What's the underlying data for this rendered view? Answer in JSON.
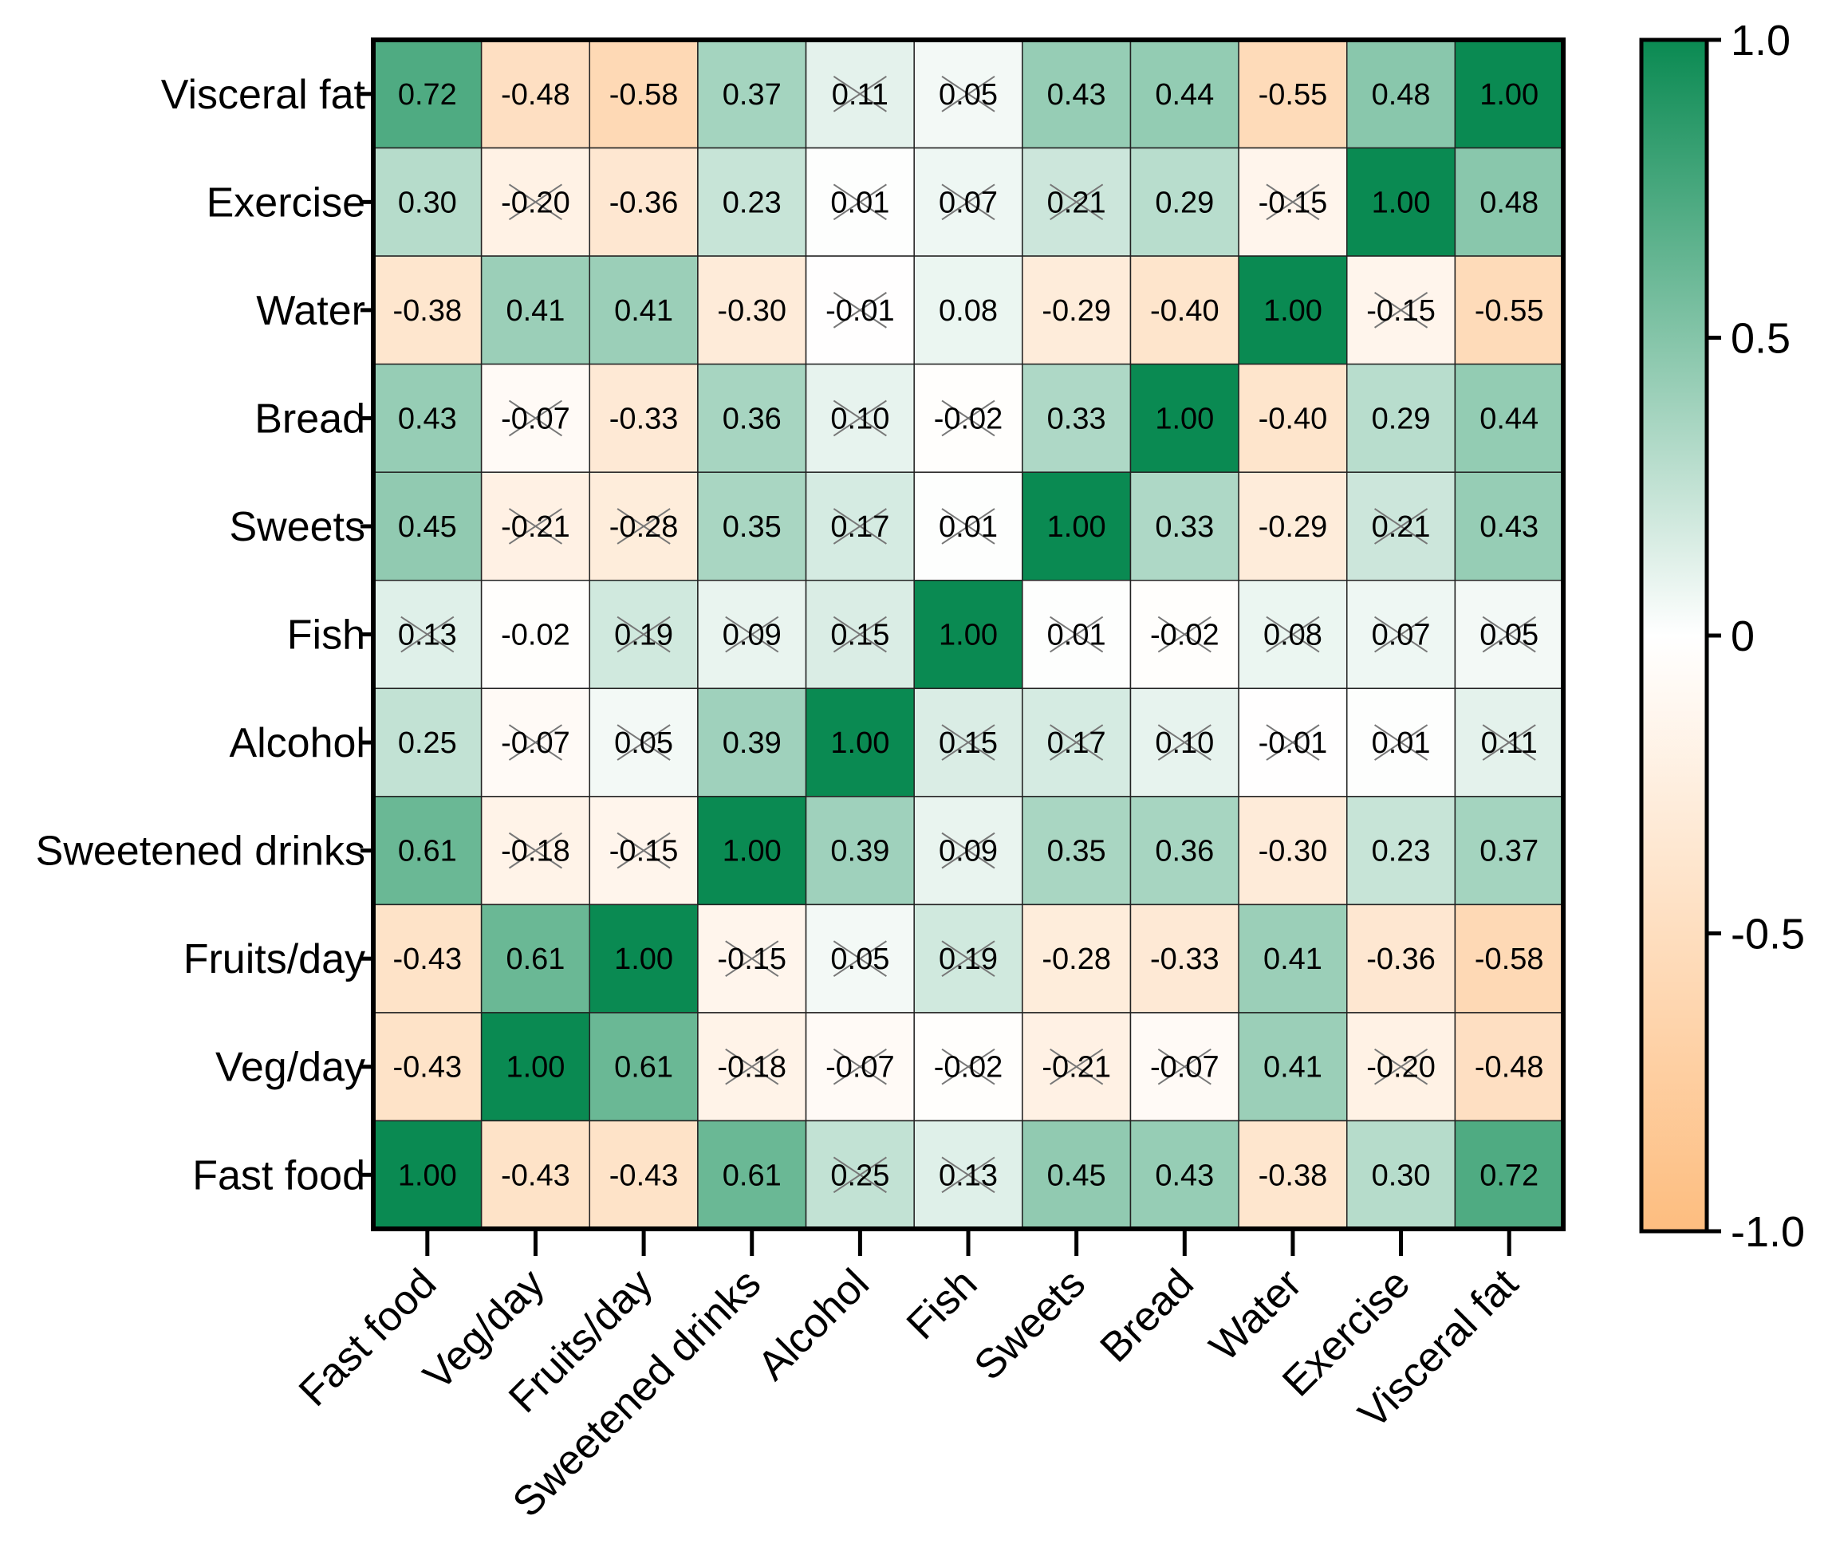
{
  "chart_data": {
    "type": "heatmap",
    "x_labels": [
      "Fast food",
      "Veg/day",
      "Fruits/day",
      "Sweetened drinks",
      "Alcohol",
      "Fish",
      "Sweets",
      "Bread",
      "Water",
      "Exercise",
      "Visceral fat"
    ],
    "y_labels_top_to_bottom": [
      "Visceral fat",
      "Exercise",
      "Water",
      "Bread",
      "Sweets",
      "Fish",
      "Alcohol",
      "Sweetened drinks",
      "Fruits/day",
      "Veg/day",
      "Fast food"
    ],
    "values": [
      [
        0.72,
        -0.48,
        -0.58,
        0.37,
        0.11,
        0.05,
        0.43,
        0.44,
        -0.55,
        0.48,
        1.0
      ],
      [
        0.3,
        -0.2,
        -0.36,
        0.23,
        0.01,
        0.07,
        0.21,
        0.29,
        -0.15,
        1.0,
        0.48
      ],
      [
        -0.38,
        0.41,
        0.41,
        -0.3,
        -0.01,
        0.08,
        -0.29,
        -0.4,
        1.0,
        -0.15,
        -0.55
      ],
      [
        0.43,
        -0.07,
        -0.33,
        0.36,
        0.1,
        -0.02,
        0.33,
        1.0,
        -0.4,
        0.29,
        0.44
      ],
      [
        0.45,
        -0.21,
        -0.28,
        0.35,
        0.17,
        0.01,
        1.0,
        0.33,
        -0.29,
        0.21,
        0.43
      ],
      [
        0.13,
        -0.02,
        0.19,
        0.09,
        0.15,
        1.0,
        0.01,
        -0.02,
        0.08,
        0.07,
        0.05
      ],
      [
        0.25,
        -0.07,
        0.05,
        0.39,
        1.0,
        0.15,
        0.17,
        0.1,
        -0.01,
        0.01,
        0.11
      ],
      [
        0.61,
        -0.18,
        -0.15,
        1.0,
        0.39,
        0.09,
        0.35,
        0.36,
        -0.3,
        0.23,
        0.37
      ],
      [
        -0.43,
        0.61,
        1.0,
        -0.15,
        0.05,
        0.19,
        -0.28,
        -0.33,
        0.41,
        -0.36,
        -0.58
      ],
      [
        -0.43,
        1.0,
        0.61,
        -0.18,
        -0.07,
        -0.02,
        -0.21,
        -0.07,
        0.41,
        -0.2,
        -0.48
      ],
      [
        1.0,
        -0.43,
        -0.43,
        0.61,
        0.25,
        0.13,
        0.45,
        0.43,
        -0.38,
        0.3,
        0.72
      ]
    ],
    "value_labels": [
      [
        "0.72",
        "-0.48",
        "-0.58",
        "0.37",
        "0.11",
        "0.05",
        "0.43",
        "0.44",
        "-0.55",
        "0.48",
        "1.00"
      ],
      [
        "0.30",
        "-0.20",
        "-0.36",
        "0.23",
        "0.01",
        "0.07",
        "0.21",
        "0.29",
        "-0.15",
        "1.00",
        "0.48"
      ],
      [
        "-0.38",
        "0.41",
        "0.41",
        "-0.30",
        "-0.01",
        "0.08",
        "-0.29",
        "-0.40",
        "1.00",
        "-0.15",
        "-0.55"
      ],
      [
        "0.43",
        "-0.07",
        "-0.33",
        "0.36",
        "0.10",
        "-0.02",
        "0.33",
        "1.00",
        "-0.40",
        "0.29",
        "0.44"
      ],
      [
        "0.45",
        "-0.21",
        "-0.28",
        "0.35",
        "0.17",
        "0.01",
        "1.00",
        "0.33",
        "-0.29",
        "0.21",
        "0.43"
      ],
      [
        "0.13",
        "-0.02",
        "0.19",
        "0.09",
        "0.15",
        "1.00",
        "0.01",
        "-0.02",
        "0.08",
        "0.07",
        "0.05"
      ],
      [
        "0.25",
        "-0.07",
        "0.05",
        "0.39",
        "1.00",
        "0.15",
        "0.17",
        "0.10",
        "-0.01",
        "0.01",
        "0.11"
      ],
      [
        "0.61",
        "-0.18",
        "-0.15",
        "1.00",
        "0.39",
        "0.09",
        "0.35",
        "0.36",
        "-0.30",
        "0.23",
        "0.37"
      ],
      [
        "-0.43",
        "0.61",
        "1.00",
        "-0.15",
        "0.05",
        "0.19",
        "-0.28",
        "-0.33",
        "0.41",
        "-0.36",
        "-0.58"
      ],
      [
        "-0.43",
        "1.00",
        "0.61",
        "-0.18",
        "-0.07",
        "-0.02",
        "-0.21",
        "-0.07",
        "0.41",
        "-0.20",
        "-0.48"
      ],
      [
        "1.00",
        "-0.43",
        "-0.43",
        "0.61",
        "0.25",
        "0.13",
        "0.45",
        "0.43",
        "-0.38",
        "0.30",
        "0.72"
      ]
    ],
    "non_significant_crossed": [
      [
        false,
        false,
        false,
        false,
        true,
        true,
        false,
        false,
        false,
        false,
        false
      ],
      [
        false,
        true,
        false,
        false,
        true,
        true,
        true,
        false,
        true,
        false,
        false
      ],
      [
        false,
        false,
        false,
        false,
        true,
        false,
        false,
        false,
        false,
        true,
        false
      ],
      [
        false,
        true,
        false,
        false,
        true,
        true,
        false,
        false,
        false,
        false,
        false
      ],
      [
        false,
        true,
        true,
        false,
        true,
        true,
        false,
        false,
        false,
        true,
        false
      ],
      [
        true,
        false,
        true,
        true,
        true,
        false,
        true,
        true,
        true,
        true,
        true
      ],
      [
        false,
        true,
        true,
        false,
        false,
        true,
        true,
        true,
        true,
        true,
        true
      ],
      [
        false,
        true,
        true,
        false,
        false,
        true,
        false,
        false,
        false,
        false,
        false
      ],
      [
        false,
        false,
        false,
        true,
        true,
        true,
        false,
        false,
        false,
        false,
        false
      ],
      [
        false,
        false,
        false,
        true,
        true,
        true,
        true,
        true,
        false,
        true,
        false
      ],
      [
        false,
        false,
        false,
        false,
        true,
        true,
        false,
        false,
        false,
        false,
        false
      ]
    ],
    "colorbar": {
      "range": [
        -1.0,
        1.0
      ],
      "ticks": [
        1.0,
        0.5,
        0,
        -0.5,
        -1.0
      ],
      "tick_labels": [
        "1.0",
        "0.5",
        "0",
        "-0.5",
        "-1.0"
      ],
      "color_min": "#fdbd7f",
      "color_mid": "#ffffff",
      "color_max": "#0a8a52"
    },
    "grid": true
  }
}
